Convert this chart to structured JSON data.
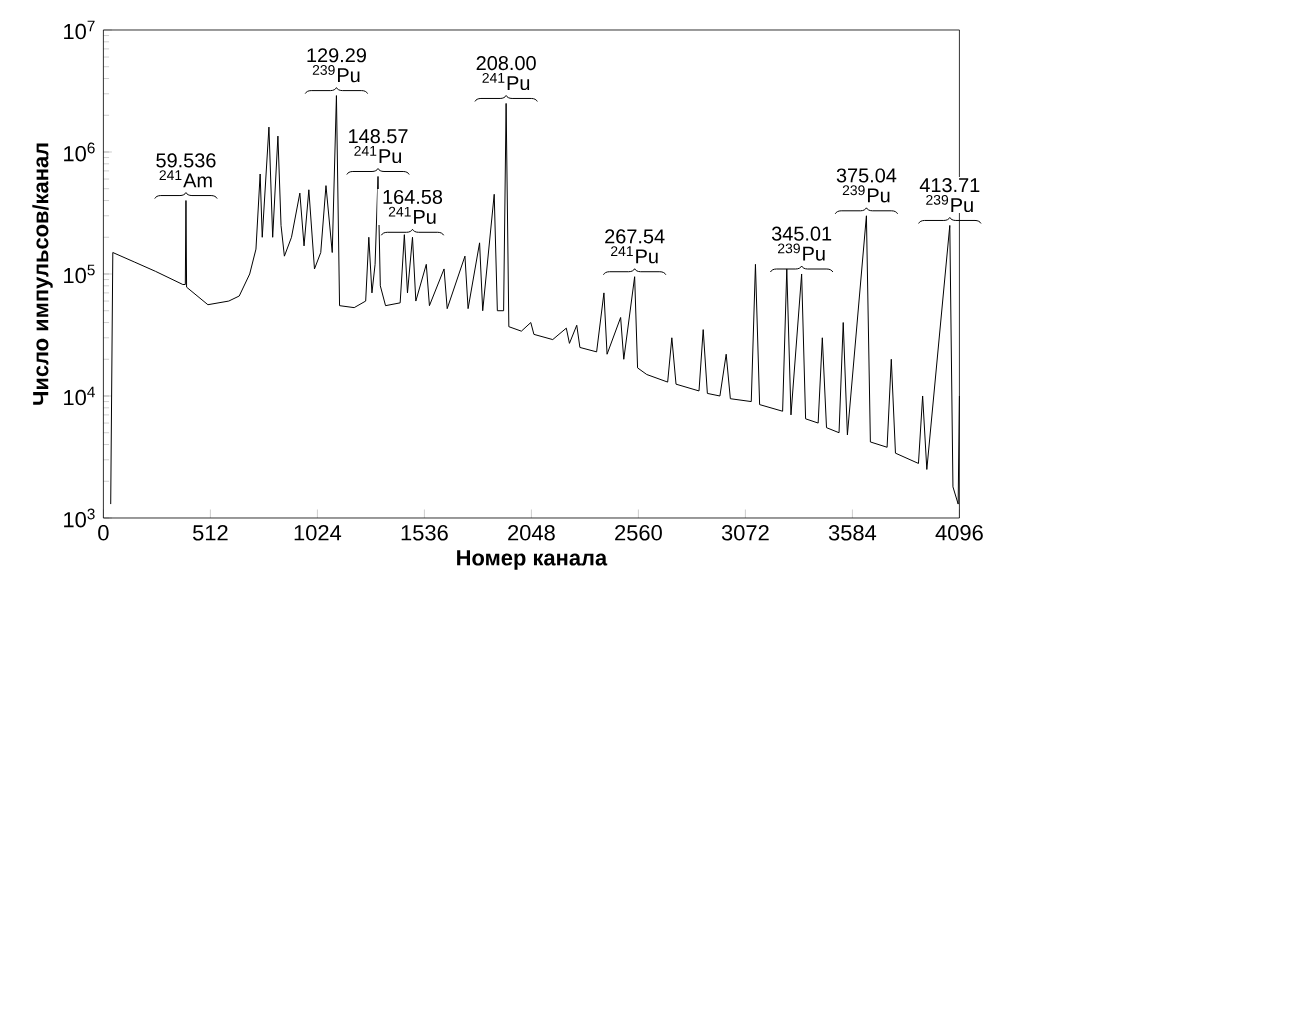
{
  "chart_data": {
    "type": "line",
    "xlabel": "Номер канала",
    "ylabel": "Число импульсов/канал",
    "log": "y",
    "xlim": [
      0,
      4096
    ],
    "ylim": [
      1000,
      10000000
    ],
    "xticks": [
      0,
      512,
      1024,
      1536,
      2048,
      2560,
      3072,
      3584,
      4096
    ],
    "yticks": [
      {
        "value": 1000,
        "label": "10$^{3}$"
      },
      {
        "value": 10000,
        "label": "10$^{4}$"
      },
      {
        "value": 100000,
        "label": "10$^{5}$"
      },
      {
        "value": 1000000,
        "label": "10$^{6}$"
      },
      {
        "value": 10000000,
        "label": "10$^{7}$"
      }
    ],
    "series": [
      {
        "color": "#000000",
        "x": [
          35,
          45,
          150,
          250,
          380,
          392,
          395,
          398,
          500,
          600,
          650,
          700,
          730,
          750,
          760,
          792,
          810,
          835,
          850,
          866,
          900,
          940,
          960,
          983,
          1010,
          1040,
          1065,
          1095,
          1115,
          1130,
          1200,
          1255,
          1270,
          1285,
          1300,
          1314,
          1325,
          1350,
          1420,
          1440,
          1455,
          1479,
          1495,
          1545,
          1560,
          1630,
          1645,
          1730,
          1745,
          1800,
          1815,
          1870,
          1885,
          1915,
          1927,
          1940,
          2000,
          2045,
          2060,
          2150,
          2215,
          2230,
          2265,
          2280,
          2360,
          2395,
          2410,
          2475,
          2490,
          2542,
          2556,
          2600,
          2700,
          2720,
          2740,
          2850,
          2870,
          2890,
          2950,
          2980,
          3000,
          3100,
          3120,
          3140,
          3250,
          3270,
          3290,
          3341,
          3360,
          3420,
          3440,
          3460,
          3520,
          3540,
          3560,
          3651,
          3670,
          3750,
          3770,
          3790,
          3900,
          3920,
          3940,
          4050,
          4065,
          4090,
          4096
        ],
        "values": [
          1300,
          150000,
          125000,
          105000,
          82000,
          82000,
          400000,
          78000,
          56000,
          60000,
          66000,
          100000,
          160000,
          660000,
          200000,
          1600000,
          200000,
          1350000,
          250000,
          140000,
          200000,
          460000,
          170000,
          490000,
          110000,
          150000,
          530000,
          150000,
          2900000,
          55000,
          53000,
          60000,
          200000,
          70000,
          120000,
          630000,
          80000,
          55000,
          58000,
          210000,
          70000,
          200000,
          60000,
          120000,
          55000,
          110000,
          52000,
          140000,
          52000,
          180000,
          50000,
          450000,
          50000,
          50000,
          2500000,
          37000,
          34000,
          40000,
          32000,
          29000,
          36000,
          27000,
          38000,
          25000,
          23000,
          70000,
          22000,
          44000,
          20000,
          95000,
          17000,
          15000,
          13000,
          30000,
          12500,
          11000,
          35000,
          10500,
          10000,
          22000,
          9500,
          9000,
          120000,
          8500,
          7500,
          110000,
          7000,
          100000,
          6500,
          6000,
          30000,
          5500,
          5000,
          40000,
          4800,
          300000,
          4200,
          3800,
          20000,
          3400,
          2800,
          10000,
          2500,
          250000,
          1800,
          1300,
          10000
        ]
      }
    ],
    "annotations": [
      {
        "text": "59.536 $^{241}$Am",
        "x": 395,
        "y": 400000
      },
      {
        "text": "129.29 $^{239}$Pu",
        "x": 1115,
        "y": 2900000
      },
      {
        "text": "148.57 $^{241}$Pu",
        "x": 1314,
        "y": 630000
      },
      {
        "text": "164.58 $^{241}$Pu",
        "x": 1479,
        "y": 200000
      },
      {
        "text": "208.00 $^{241}$Pu",
        "x": 1927,
        "y": 2500000
      },
      {
        "text": "267.54 $^{241}$Pu",
        "x": 2542,
        "y": 95000
      },
      {
        "text": "345.01 $^{239}$Pu",
        "x": 3341,
        "y": 100000
      },
      {
        "text": "375.04 $^{239}$Pu",
        "x": 3651,
        "y": 300000
      },
      {
        "text": "413.71 $^{239}$Pu",
        "x": 4050,
        "y": 250000
      }
    ]
  }
}
